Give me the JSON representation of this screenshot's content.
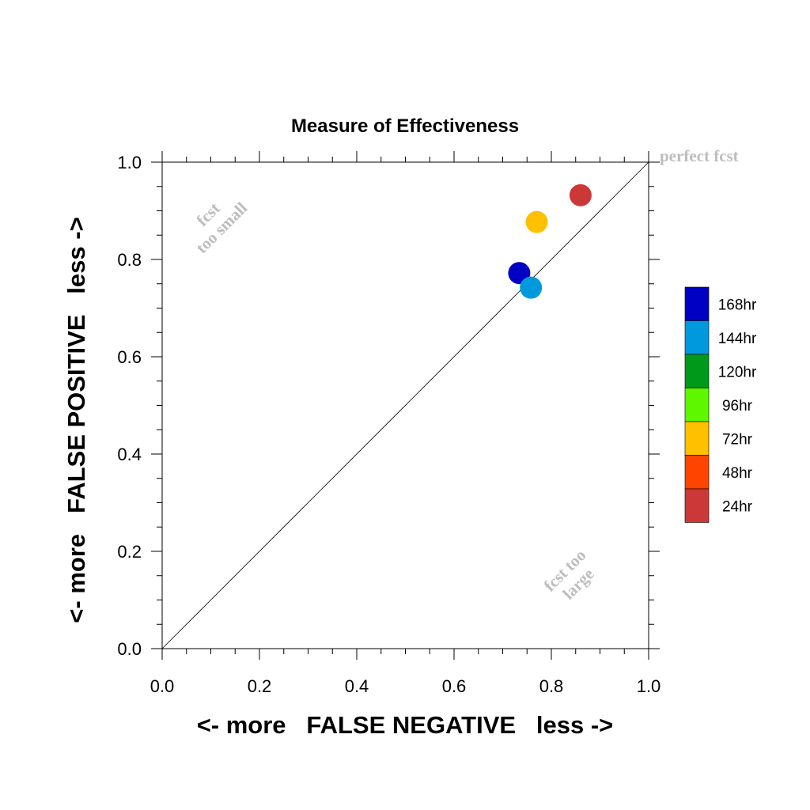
{
  "chart_data": {
    "type": "scatter",
    "title": "Measure of Effectiveness",
    "xlabel": "<- more   FALSE NEGATIVE   less ->",
    "ylabel": "<- more   FALSE POSITIVE   less ->",
    "xlim": [
      0.0,
      1.0
    ],
    "ylim": [
      0.0,
      1.0
    ],
    "x_ticks": [
      "0.0",
      "0.2",
      "0.4",
      "0.6",
      "0.8",
      "1.0"
    ],
    "y_ticks": [
      "0.0",
      "0.2",
      "0.4",
      "0.6",
      "0.8",
      "1.0"
    ],
    "grid": false,
    "reference_line": {
      "from": [
        0.0,
        0.0
      ],
      "to": [
        1.0,
        1.0
      ]
    },
    "annotations": {
      "perfect": "perfect fcst",
      "small_line1": "fcst",
      "small_line2": "too small",
      "large_line1": "fcst too",
      "large_line2": "large"
    },
    "legend": {
      "placement": "right",
      "entries": [
        {
          "label": "168hr",
          "color": "#0000c4"
        },
        {
          "label": "144hr",
          "color": "#0099dd"
        },
        {
          "label": "120hr",
          "color": "#009919"
        },
        {
          "label": "96hr",
          "color": "#5ef700"
        },
        {
          "label": "72hr",
          "color": "#ffc000"
        },
        {
          "label": "48hr",
          "color": "#ff4400"
        },
        {
          "label": "24hr",
          "color": "#cc3838"
        }
      ]
    },
    "points": [
      {
        "lead": "24hr",
        "x": 0.86,
        "y": 0.932,
        "color": "#cc3838"
      },
      {
        "lead": "72hr",
        "x": 0.77,
        "y": 0.877,
        "color": "#ffc000"
      },
      {
        "lead": "168hr",
        "x": 0.734,
        "y": 0.772,
        "color": "#0000c4"
      },
      {
        "lead": "144hr",
        "x": 0.758,
        "y": 0.742,
        "color": "#0099dd"
      }
    ]
  }
}
